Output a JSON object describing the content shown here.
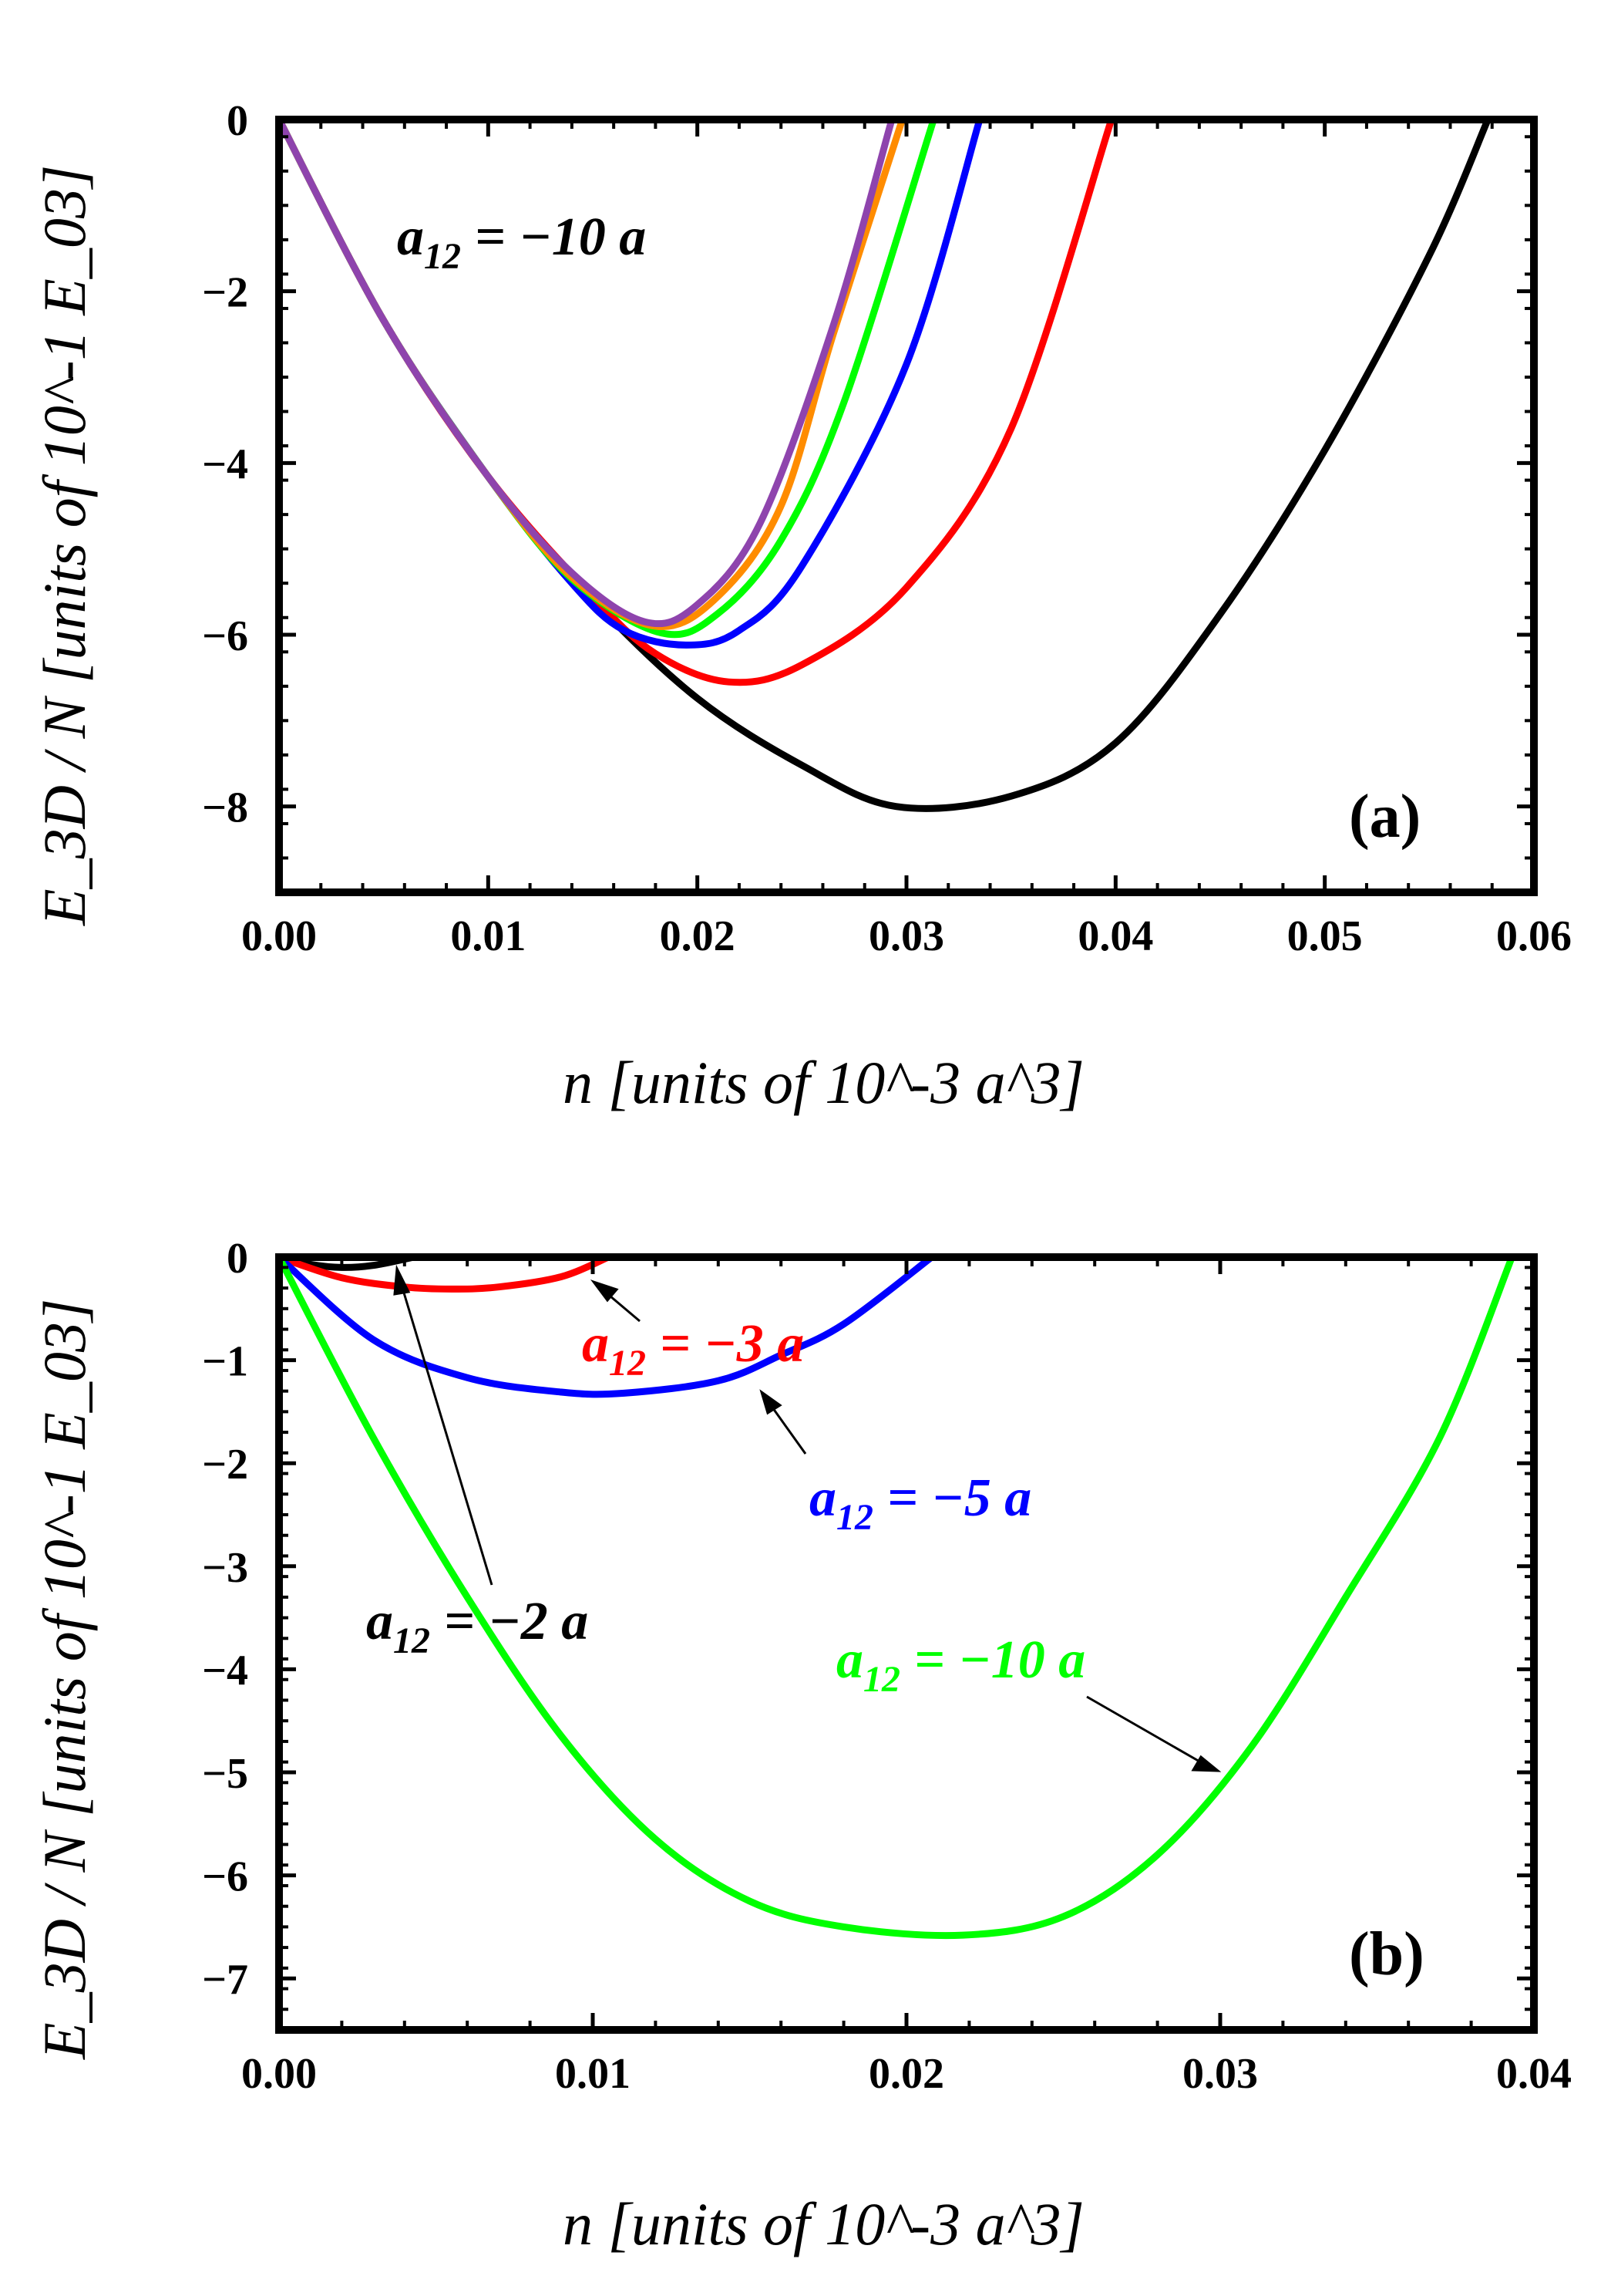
{
  "chart_data": [
    {
      "type": "line",
      "panel_label": "(a)",
      "xlabel": "n [units of 10^-3 a^3]",
      "ylabel": "E_3D / N [units of 10^-1 E_03]",
      "xlim": [
        0,
        0.06
      ],
      "ylim": [
        -9,
        0
      ],
      "x_ticks": [
        0.0,
        0.01,
        0.02,
        0.03,
        0.04,
        0.05,
        0.06
      ],
      "x_tick_labels": [
        "0.00",
        "0.01",
        "0.02",
        "0.03",
        "0.04",
        "0.05",
        "0.06"
      ],
      "y_ticks": [
        0,
        -2,
        -4,
        -6,
        -8
      ],
      "y_tick_labels": [
        "0",
        "−2",
        "−4",
        "−6",
        "−8"
      ],
      "annotations": [
        {
          "text": "a12 = −10 a",
          "sub": "12",
          "lhs": "a",
          "rhs": "= −10 a",
          "color": "#000000"
        }
      ],
      "series": [
        {
          "name": "black",
          "color": "#000000",
          "points": [
            [
              0,
              0
            ],
            [
              0.005,
              -2.34
            ],
            [
              0.01,
              -4.16
            ],
            [
              0.015,
              -5.59
            ],
            [
              0.02,
              -6.74
            ],
            [
              0.025,
              -7.52
            ],
            [
              0.0295,
              -8.0
            ],
            [
              0.035,
              -7.88
            ],
            [
              0.04,
              -7.26
            ],
            [
              0.045,
              -5.76
            ],
            [
              0.05,
              -3.85
            ],
            [
              0.055,
              -1.58
            ],
            [
              0.0578,
              0
            ]
          ]
        },
        {
          "name": "red",
          "color": "#ff0000",
          "points": [
            [
              0,
              0
            ],
            [
              0.005,
              -2.34
            ],
            [
              0.01,
              -4.16
            ],
            [
              0.015,
              -5.55
            ],
            [
              0.018,
              -6.22
            ],
            [
              0.0215,
              -6.55
            ],
            [
              0.025,
              -6.35
            ],
            [
              0.03,
              -5.45
            ],
            [
              0.035,
              -3.6
            ],
            [
              0.0398,
              0
            ]
          ]
        },
        {
          "name": "blue",
          "color": "#0000ff",
          "points": [
            [
              0,
              0
            ],
            [
              0.005,
              -2.34
            ],
            [
              0.01,
              -4.16
            ],
            [
              0.014,
              -5.4
            ],
            [
              0.0165,
              -5.95
            ],
            [
              0.0195,
              -6.12
            ],
            [
              0.022,
              -5.95
            ],
            [
              0.025,
              -5.2
            ],
            [
              0.03,
              -2.85
            ],
            [
              0.0335,
              0
            ]
          ]
        },
        {
          "name": "green",
          "color": "#00ff00",
          "points": [
            [
              0,
              0
            ],
            [
              0.005,
              -2.34
            ],
            [
              0.01,
              -4.16
            ],
            [
              0.014,
              -5.35
            ],
            [
              0.0183,
              -5.98
            ],
            [
              0.021,
              -5.75
            ],
            [
              0.024,
              -4.9
            ],
            [
              0.027,
              -3.3
            ],
            [
              0.0313,
              0
            ]
          ]
        },
        {
          "name": "orange",
          "color": "#ff8c00",
          "points": [
            [
              0,
              0
            ],
            [
              0.005,
              -2.34
            ],
            [
              0.01,
              -4.16
            ],
            [
              0.014,
              -5.33
            ],
            [
              0.018,
              -5.9
            ],
            [
              0.021,
              -5.55
            ],
            [
              0.024,
              -4.5
            ],
            [
              0.0265,
              -2.5
            ],
            [
              0.0298,
              0
            ]
          ]
        },
        {
          "name": "purple",
          "color": "#8e44ad",
          "points": [
            [
              0,
              0
            ],
            [
              0.005,
              -2.34
            ],
            [
              0.01,
              -4.16
            ],
            [
              0.014,
              -5.28
            ],
            [
              0.0175,
              -5.85
            ],
            [
              0.02,
              -5.65
            ],
            [
              0.023,
              -4.7
            ],
            [
              0.0265,
              -2.4
            ],
            [
              0.0293,
              0
            ]
          ]
        }
      ]
    },
    {
      "type": "line",
      "panel_label": "(b)",
      "xlabel": "n [units of 10^-3 a^3]",
      "ylabel": "E_3D / N [units of 10^-1 E_03]",
      "xlim": [
        0,
        0.04
      ],
      "ylim": [
        -7.5,
        0
      ],
      "x_ticks": [
        0.0,
        0.01,
        0.02,
        0.03,
        0.04
      ],
      "x_tick_labels": [
        "0.00",
        "0.01",
        "0.02",
        "0.03",
        "0.04"
      ],
      "y_ticks": [
        0,
        -1,
        -2,
        -3,
        -4,
        -5,
        -6,
        -7
      ],
      "y_tick_labels": [
        "0",
        "−1",
        "−2",
        "−3",
        "−4",
        "−5",
        "−6",
        "−7"
      ],
      "annotations": [
        {
          "text": "a12 = −3 a",
          "lhs": "a",
          "sub": "12",
          "rhs": "= −3 a",
          "color": "#ff0000"
        },
        {
          "text": "a12 = −5 a",
          "lhs": "a",
          "sub": "12",
          "rhs": "= −5 a",
          "color": "#0000ff"
        },
        {
          "text": "a12 = −2 a",
          "lhs": "a",
          "sub": "12",
          "rhs": "= −2 a",
          "color": "#000000"
        },
        {
          "text": "a12 = −10 a",
          "lhs": "a",
          "sub": "12",
          "rhs": "= −10 a",
          "color": "#00ff00"
        }
      ],
      "series": [
        {
          "name": "a12 = -2a",
          "color": "#000000",
          "points": [
            [
              0,
              0
            ],
            [
              0.001,
              -0.07
            ],
            [
              0.002,
              -0.1
            ],
            [
              0.003,
              -0.08
            ],
            [
              0.0043,
              0
            ]
          ]
        },
        {
          "name": "a12 = -3a",
          "color": "#ff0000",
          "points": [
            [
              0,
              0
            ],
            [
              0.002,
              -0.2
            ],
            [
              0.004,
              -0.29
            ],
            [
              0.0055,
              -0.31
            ],
            [
              0.007,
              -0.29
            ],
            [
              0.009,
              -0.19
            ],
            [
              0.0105,
              0
            ]
          ]
        },
        {
          "name": "a12 = -5a",
          "color": "#0000ff",
          "points": [
            [
              0,
              0
            ],
            [
              0.003,
              -0.8
            ],
            [
              0.006,
              -1.17
            ],
            [
              0.009,
              -1.31
            ],
            [
              0.011,
              -1.32
            ],
            [
              0.014,
              -1.2
            ],
            [
              0.016,
              -0.95
            ],
            [
              0.018,
              -0.65
            ],
            [
              0.0208,
              0
            ]
          ]
        },
        {
          "name": "a12 = -10a",
          "color": "#00ff00",
          "points": [
            [
              0,
              0
            ],
            [
              0.003,
              -1.75
            ],
            [
              0.006,
              -3.3
            ],
            [
              0.009,
              -4.65
            ],
            [
              0.012,
              -5.65
            ],
            [
              0.015,
              -6.25
            ],
            [
              0.018,
              -6.5
            ],
            [
              0.0218,
              -6.58
            ],
            [
              0.025,
              -6.4
            ],
            [
              0.028,
              -5.8
            ],
            [
              0.031,
              -4.75
            ],
            [
              0.034,
              -3.3
            ],
            [
              0.037,
              -1.75
            ],
            [
              0.0393,
              0
            ]
          ]
        }
      ]
    }
  ]
}
